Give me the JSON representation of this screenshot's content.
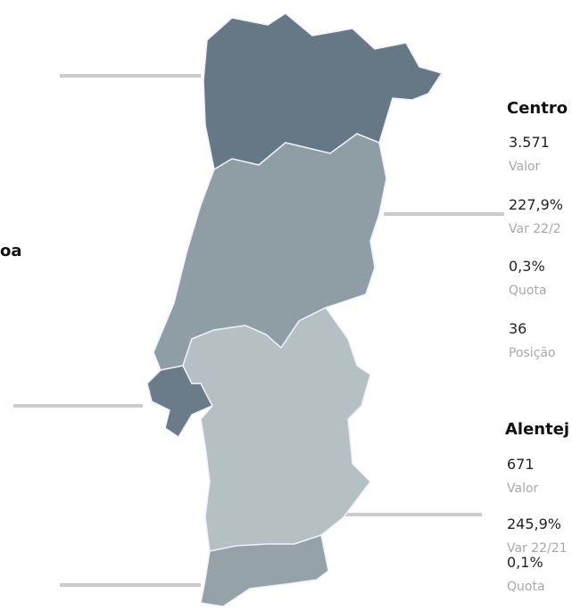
{
  "regions": [
    {
      "name": "Centro",
      "stats": [
        {
          "value": "3.571",
          "label": "Valor"
        },
        {
          "value": "227,9%",
          "label": "Var 22/2"
        },
        {
          "value": "0,3%",
          "label": "Quota"
        },
        {
          "value": "36",
          "label": "Posição"
        }
      ]
    },
    {
      "name": "Alentej",
      "stats": [
        {
          "value": "671",
          "label": "Valor"
        },
        {
          "value": "245,9%",
          "label": "Var 22/21"
        },
        {
          "value": "0,1%",
          "label": "Quota"
        }
      ]
    }
  ],
  "left_labels": [
    "oa"
  ]
}
